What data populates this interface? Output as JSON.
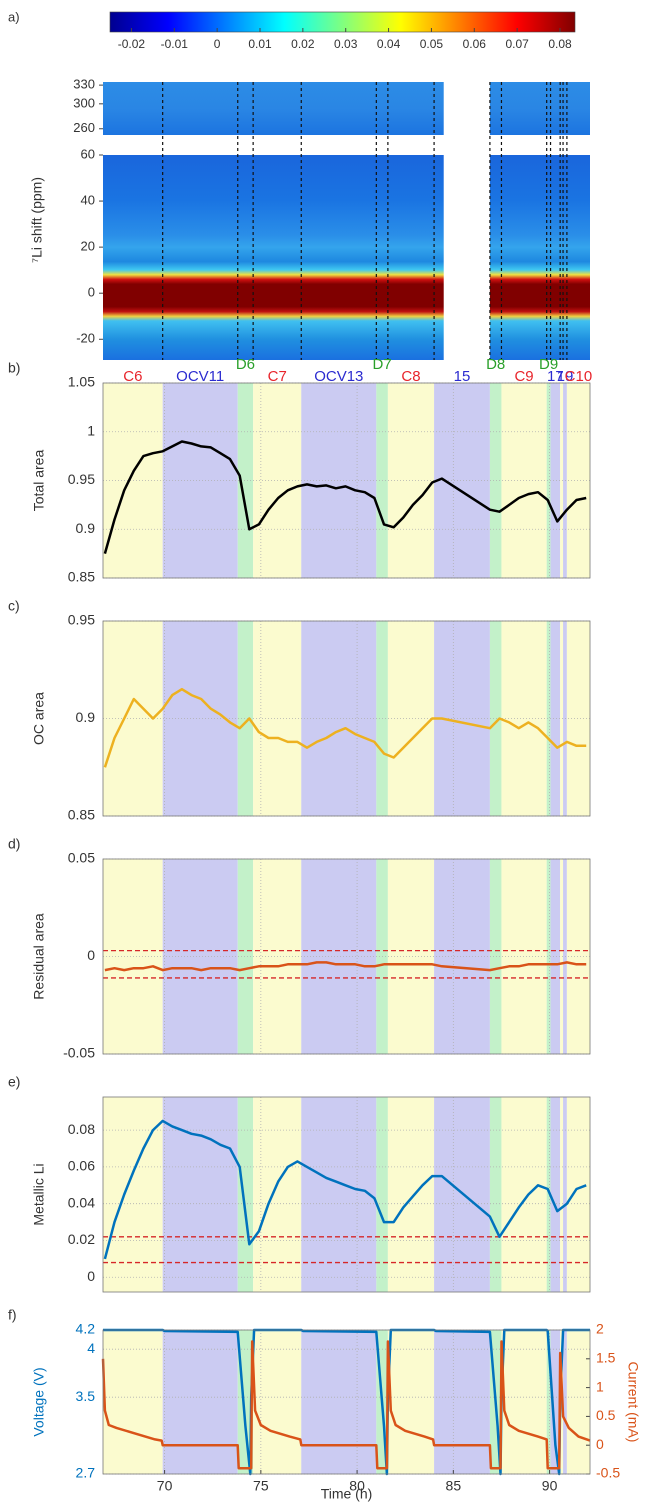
{
  "chart_data": [
    {
      "type": "heatmap",
      "panel": "a)",
      "ylabel": "⁷Li shift (ppm)",
      "colorbar": {
        "colormap": "jet",
        "lim": [
          -0.025,
          0.0835
        ],
        "ticks": [
          -0.02,
          -0.01,
          0,
          0.01,
          0.02,
          0.03,
          0.04,
          0.05,
          0.06,
          0.07,
          0.08
        ]
      },
      "xlim": [
        66.8,
        92.1
      ],
      "x_gap": [
        84.5,
        86.9
      ],
      "blocks": [
        {
          "ylim": [
            250,
            335
          ],
          "yticks": [
            260,
            300,
            330
          ]
        },
        {
          "ylim": [
            -29,
            60
          ],
          "yticks": [
            -20,
            0,
            20,
            40,
            60
          ]
        }
      ]
    },
    {
      "type": "line",
      "panel": "b)",
      "ylabel": "Total area",
      "color": "#000000",
      "xlim": [
        66.8,
        92.1
      ],
      "xticks": [
        70,
        75,
        80,
        85,
        90
      ],
      "ylim": [
        0.85,
        1.05
      ],
      "yticks": [
        0.85,
        0.9,
        0.95,
        1,
        1.05
      ],
      "grid": true,
      "phases": [
        {
          "label": "C6",
          "start": 66.8,
          "end": 69.9,
          "color": "#fbfbcf",
          "label_color": "#e8242b"
        },
        {
          "label": "OCV11",
          "start": 69.9,
          "end": 73.8,
          "color": "#cbcbf2",
          "label_color": "#2b2bd0"
        },
        {
          "label": "D6",
          "start": 73.8,
          "end": 74.6,
          "color": "#c3f1c9",
          "label_color": "#2aa02a"
        },
        {
          "label": "C7",
          "start": 74.6,
          "end": 77.1,
          "color": "#fbfbcf",
          "label_color": "#e8242b"
        },
        {
          "label": "OCV13",
          "start": 77.1,
          "end": 81.0,
          "color": "#cbcbf2",
          "label_color": "#2b2bd0"
        },
        {
          "label": "D7",
          "start": 81.0,
          "end": 81.6,
          "color": "#c3f1c9",
          "label_color": "#2aa02a"
        },
        {
          "label": "C8",
          "start": 81.6,
          "end": 84.0,
          "color": "#fbfbcf",
          "label_color": "#e8242b"
        },
        {
          "label": "15",
          "start": 84.0,
          "end": 86.9,
          "color": "#cbcbf2",
          "label_color": "#2b2bd0"
        },
        {
          "label": "D8",
          "start": 86.9,
          "end": 87.5,
          "color": "#c3f1c9",
          "label_color": "#2aa02a"
        },
        {
          "label": "C9",
          "start": 87.5,
          "end": 89.85,
          "color": "#fbfbcf",
          "label_color": "#e8242b"
        },
        {
          "label": "D9",
          "start": 89.85,
          "end": 90.05,
          "color": "#c3f1c9",
          "label_color": "#2aa02a"
        },
        {
          "label": "17",
          "start": 90.05,
          "end": 90.55,
          "color": "#cbcbf2",
          "label_color": "#2b2bd0"
        },
        {
          "label": null,
          "start": 90.55,
          "end": 90.7,
          "color": "#fbfbcf"
        },
        {
          "label": "19",
          "start": 90.7,
          "end": 90.9,
          "color": "#cbcbf2",
          "label_color": "#2b2bd0"
        },
        {
          "label": "C10",
          "start": 90.9,
          "end": 92.1,
          "color": "#fbfbcf",
          "label_color": "#e8242b"
        }
      ],
      "x": [
        66.9,
        67.4,
        67.9,
        68.4,
        68.9,
        69.4,
        69.9,
        70.4,
        70.9,
        71.4,
        71.9,
        72.4,
        72.9,
        73.4,
        73.9,
        74.4,
        74.9,
        75.4,
        75.9,
        76.4,
        76.9,
        77.4,
        77.9,
        78.4,
        78.9,
        79.4,
        79.9,
        80.4,
        80.9,
        81.4,
        81.9,
        82.4,
        82.9,
        83.4,
        83.9,
        84.4,
        86.9,
        87.4,
        87.9,
        88.4,
        88.9,
        89.4,
        89.9,
        90.4,
        90.9,
        91.4,
        91.9
      ],
      "values": [
        0.875,
        0.91,
        0.94,
        0.96,
        0.975,
        0.978,
        0.98,
        0.985,
        0.99,
        0.988,
        0.985,
        0.984,
        0.978,
        0.972,
        0.955,
        0.9,
        0.905,
        0.92,
        0.932,
        0.94,
        0.944,
        0.946,
        0.944,
        0.945,
        0.942,
        0.944,
        0.94,
        0.938,
        0.932,
        0.905,
        0.902,
        0.912,
        0.925,
        0.935,
        0.948,
        0.952,
        0.92,
        0.918,
        0.925,
        0.932,
        0.936,
        0.938,
        0.93,
        0.908,
        0.92,
        0.93,
        0.932
      ]
    },
    {
      "type": "line",
      "panel": "c)",
      "ylabel": "OC area",
      "color": "#edb120",
      "xlim": [
        66.8,
        92.1
      ],
      "xticks": [
        70,
        75,
        80,
        85,
        90
      ],
      "ylim": [
        0.85,
        0.95
      ],
      "yticks": [
        0.85,
        0.9,
        0.95
      ],
      "grid": true,
      "x": [
        66.9,
        67.4,
        67.9,
        68.4,
        68.9,
        69.4,
        69.9,
        70.4,
        70.9,
        71.4,
        71.9,
        72.4,
        72.9,
        73.4,
        73.9,
        74.4,
        74.9,
        75.4,
        75.9,
        76.4,
        76.9,
        77.4,
        77.9,
        78.4,
        78.9,
        79.4,
        79.9,
        80.4,
        80.9,
        81.4,
        81.9,
        82.4,
        82.9,
        83.4,
        83.9,
        84.4,
        86.9,
        87.4,
        87.9,
        88.4,
        88.9,
        89.4,
        89.9,
        90.4,
        90.9,
        91.4,
        91.9
      ],
      "values": [
        0.875,
        0.89,
        0.9,
        0.91,
        0.905,
        0.9,
        0.905,
        0.912,
        0.915,
        0.912,
        0.91,
        0.905,
        0.902,
        0.898,
        0.895,
        0.9,
        0.893,
        0.89,
        0.89,
        0.888,
        0.888,
        0.885,
        0.888,
        0.89,
        0.893,
        0.895,
        0.892,
        0.89,
        0.888,
        0.882,
        0.88,
        0.885,
        0.89,
        0.895,
        0.9,
        0.9,
        0.895,
        0.9,
        0.898,
        0.895,
        0.898,
        0.895,
        0.89,
        0.885,
        0.888,
        0.886,
        0.886
      ]
    },
    {
      "type": "line",
      "panel": "d)",
      "ylabel": "Residual area",
      "color": "#d95319",
      "xlim": [
        66.8,
        92.1
      ],
      "xticks": [
        70,
        75,
        80,
        85,
        90
      ],
      "ylim": [
        -0.05,
        0.05
      ],
      "yticks": [
        -0.05,
        0,
        0.05
      ],
      "grid": true,
      "hlines": [
        0.003,
        -0.011
      ],
      "hline_color": "#d62728",
      "x": [
        66.9,
        67.4,
        67.9,
        68.4,
        68.9,
        69.4,
        69.9,
        70.4,
        70.9,
        71.4,
        71.9,
        72.4,
        72.9,
        73.4,
        73.9,
        74.4,
        74.9,
        75.4,
        75.9,
        76.4,
        76.9,
        77.4,
        77.9,
        78.4,
        78.9,
        79.4,
        79.9,
        80.4,
        80.9,
        81.4,
        81.9,
        82.4,
        82.9,
        83.4,
        83.9,
        84.4,
        86.9,
        87.4,
        87.9,
        88.4,
        88.9,
        89.4,
        89.9,
        90.4,
        90.9,
        91.4,
        91.9
      ],
      "values": [
        -0.007,
        -0.006,
        -0.007,
        -0.006,
        -0.006,
        -0.005,
        -0.007,
        -0.006,
        -0.006,
        -0.006,
        -0.007,
        -0.006,
        -0.006,
        -0.006,
        -0.007,
        -0.006,
        -0.005,
        -0.005,
        -0.005,
        -0.004,
        -0.004,
        -0.004,
        -0.003,
        -0.003,
        -0.004,
        -0.004,
        -0.004,
        -0.005,
        -0.005,
        -0.004,
        -0.004,
        -0.004,
        -0.004,
        -0.004,
        -0.004,
        -0.005,
        -0.007,
        -0.006,
        -0.005,
        -0.005,
        -0.004,
        -0.004,
        -0.004,
        -0.004,
        -0.003,
        -0.004,
        -0.004
      ]
    },
    {
      "type": "line",
      "panel": "e)",
      "ylabel": "Metallic Li",
      "color": "#0072bd",
      "xlim": [
        66.8,
        92.1
      ],
      "xticks": [
        70,
        75,
        80,
        85,
        90
      ],
      "ylim": [
        -0.008,
        0.098
      ],
      "yticks": [
        0,
        0.02,
        0.04,
        0.06,
        0.08
      ],
      "grid": true,
      "hlines": [
        0.022,
        0.008
      ],
      "hline_color": "#d62728",
      "x": [
        66.9,
        67.4,
        67.9,
        68.4,
        68.9,
        69.4,
        69.9,
        70.4,
        70.9,
        71.4,
        71.9,
        72.4,
        72.9,
        73.4,
        73.9,
        74.4,
        74.9,
        75.4,
        75.9,
        76.4,
        76.9,
        77.4,
        77.9,
        78.4,
        78.9,
        79.4,
        79.9,
        80.4,
        80.9,
        81.4,
        81.9,
        82.4,
        82.9,
        83.4,
        83.9,
        84.4,
        86.9,
        87.4,
        87.9,
        88.4,
        88.9,
        89.4,
        89.9,
        90.4,
        90.9,
        91.4,
        91.9
      ],
      "values": [
        0.01,
        0.03,
        0.045,
        0.058,
        0.07,
        0.08,
        0.085,
        0.082,
        0.08,
        0.078,
        0.077,
        0.075,
        0.072,
        0.07,
        0.06,
        0.018,
        0.025,
        0.04,
        0.052,
        0.06,
        0.063,
        0.06,
        0.057,
        0.054,
        0.052,
        0.05,
        0.048,
        0.047,
        0.043,
        0.03,
        0.03,
        0.038,
        0.044,
        0.05,
        0.055,
        0.055,
        0.033,
        0.022,
        0.03,
        0.038,
        0.045,
        0.05,
        0.048,
        0.036,
        0.04,
        0.048,
        0.05
      ]
    },
    {
      "type": "line",
      "panel": "f)",
      "ylabel": "Voltage (V)",
      "y2label": "Current (mA)",
      "xlabel": "Time (h)",
      "xlim": [
        66.8,
        92.1
      ],
      "xticks": [
        70,
        75,
        80,
        85,
        90
      ],
      "ylim": [
        2.7,
        4.2
      ],
      "yticks": [
        2.7,
        3.5,
        4,
        4.2
      ],
      "y2lim": [
        -0.5,
        2
      ],
      "y2ticks": [
        -0.5,
        0,
        0.5,
        1,
        1.5,
        2
      ],
      "grid": true,
      "series": [
        {
          "color": "#0072bd",
          "x": [
            66.8,
            69.9,
            70.0,
            73.8,
            74.2,
            74.45,
            74.5,
            74.65,
            77.1,
            77.2,
            81.0,
            81.4,
            81.55,
            81.6,
            81.75,
            84.0,
            84.1,
            86.9,
            87.3,
            87.45,
            87.5,
            87.65,
            89.85,
            89.9,
            90.3,
            90.5,
            90.55,
            90.7,
            92.1
          ],
          "values": [
            4.2,
            4.2,
            4.19,
            4.18,
            3.2,
            2.7,
            3.5,
            4.2,
            4.2,
            4.19,
            4.18,
            3.2,
            2.7,
            3.5,
            4.2,
            4.2,
            4.19,
            4.18,
            3.2,
            2.7,
            3.5,
            4.2,
            4.2,
            4.19,
            3.0,
            2.7,
            3.5,
            4.2,
            4.2
          ]
        },
        {
          "color": "#d95319",
          "axis": "y2",
          "x": [
            66.8,
            66.9,
            67.1,
            67.5,
            68.5,
            69.5,
            69.85,
            69.9,
            73.8,
            73.85,
            74.5,
            74.55,
            74.7,
            75.0,
            75.5,
            76.5,
            77.05,
            77.1,
            81.0,
            81.05,
            81.55,
            81.6,
            81.75,
            82.0,
            82.5,
            83.5,
            83.95,
            84.0,
            86.9,
            86.95,
            87.45,
            87.5,
            87.65,
            87.9,
            88.4,
            89.4,
            89.85,
            89.9,
            90.5,
            90.55,
            90.7,
            91.0,
            91.5,
            92.1
          ],
          "values": [
            1.5,
            0.6,
            0.35,
            0.3,
            0.2,
            0.1,
            0.08,
            0,
            0,
            -0.4,
            -0.4,
            1.8,
            0.6,
            0.35,
            0.25,
            0.15,
            0.1,
            0,
            0,
            -0.4,
            -0.4,
            1.8,
            0.6,
            0.35,
            0.25,
            0.15,
            0.1,
            0,
            0,
            -0.4,
            -0.4,
            1.8,
            0.6,
            0.35,
            0.25,
            0.15,
            0.1,
            -0.4,
            -0.4,
            1.6,
            0.5,
            0.3,
            0.15,
            0.08
          ]
        }
      ]
    }
  ]
}
